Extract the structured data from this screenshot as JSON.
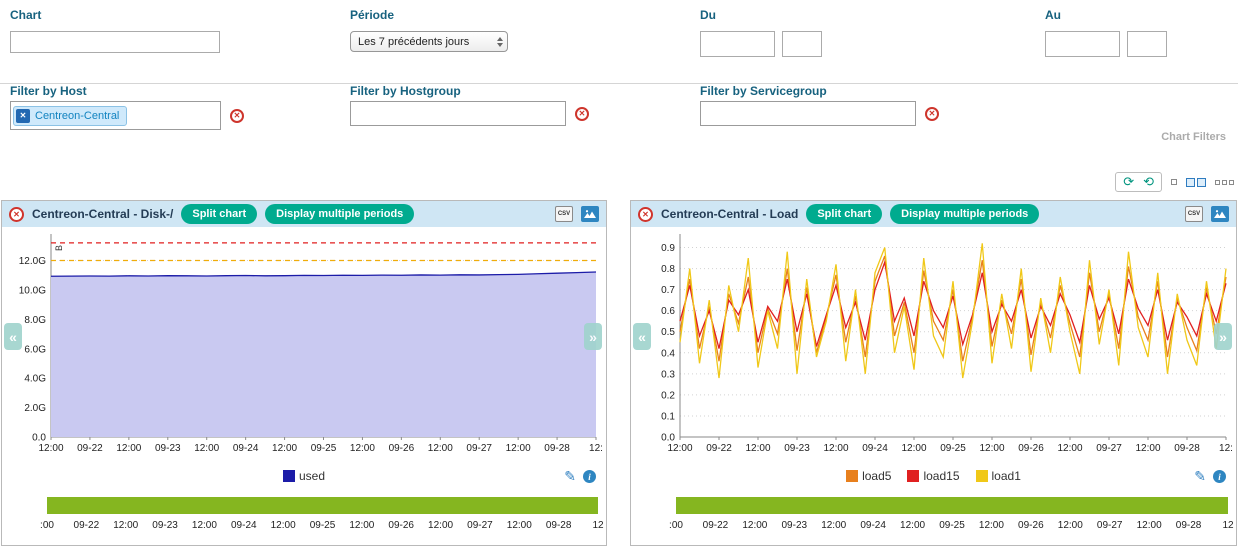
{
  "filter_form": {
    "chart": {
      "label": "Chart",
      "value": ""
    },
    "periode": {
      "label": "Période",
      "value": "Les 7 précédents jours"
    },
    "du": {
      "label": "Du",
      "date_value": "",
      "time_value": ""
    },
    "au": {
      "label": "Au",
      "date_value": "",
      "time_value": ""
    },
    "host": {
      "label": "Filter by Host",
      "chip": "Centreon-Central",
      "value": ""
    },
    "hostgroup": {
      "label": "Filter by Hostgroup",
      "value": ""
    },
    "servicegroup": {
      "label": "Filter by Servicegroup",
      "value": ""
    },
    "section_label": "Chart Filters"
  },
  "icons": {
    "close": "✕",
    "chip_remove": "✕",
    "prev": "«",
    "next": "»",
    "edit": "✎",
    "info": "i",
    "refresh_cw": "⟳",
    "refresh_ccw": "⟲",
    "csv": "CSV"
  },
  "panels": [
    {
      "title": "Centreon-Central - Disk-/",
      "split_button": "Split chart",
      "periods_button": "Display multiple periods"
    },
    {
      "title": "Centreon-Central - Load",
      "split_button": "Split chart",
      "periods_button": "Display multiple periods"
    }
  ],
  "timeline": {
    "color": "#85b620",
    "x_ticks": [
      ":00",
      "09-22",
      "12:00",
      "09-23",
      "12:00",
      "09-24",
      "12:00",
      "09-25",
      "12:00",
      "09-26",
      "12:00",
      "09-27",
      "12:00",
      "09-28",
      "12"
    ]
  },
  "chart_data": [
    {
      "type": "area",
      "title": "Centreon-Central - Disk-/",
      "ylabel": "B",
      "ylim": [
        0,
        13.6
      ],
      "yticks": [
        0,
        2,
        4,
        6,
        8,
        10,
        12
      ],
      "ytick_labels": [
        "0.0",
        "2.0G",
        "4.0G",
        "6.0G",
        "8.0G",
        "10.0G",
        "12.0G"
      ],
      "x_ticks": [
        "12:00",
        "09-22",
        "12:00",
        "09-23",
        "12:00",
        "09-24",
        "12:00",
        "09-25",
        "12:00",
        "09-26",
        "12:00",
        "09-27",
        "12:00",
        "09-28",
        "12:"
      ],
      "grid": true,
      "legend_position": "bottom",
      "thresholds": [
        {
          "name": "critical",
          "value": 13.2,
          "color": "#e01f1f"
        },
        {
          "name": "warning",
          "value": 12.0,
          "color": "#f0ad0a"
        }
      ],
      "series": [
        {
          "name": "used",
          "color": "#1c1ca8",
          "fill": "#c9c9f1",
          "values": [
            10.93,
            10.94,
            10.95,
            10.94,
            10.96,
            10.95,
            10.97,
            10.96,
            10.95,
            10.97,
            10.98,
            10.96,
            10.97,
            10.99,
            10.98,
            11.0,
            10.99,
            11.01,
            11.0,
            11.02,
            11.01,
            11.03,
            11.02,
            11.04,
            11.06,
            11.1,
            11.14,
            11.18,
            11.22
          ]
        }
      ]
    },
    {
      "type": "line",
      "title": "Centreon-Central - Load",
      "ylabel": "",
      "ylim": [
        0,
        0.95
      ],
      "yticks": [
        0,
        0.1,
        0.2,
        0.3,
        0.4,
        0.5,
        0.6,
        0.7,
        0.8,
        0.9
      ],
      "ytick_labels": [
        "0.0",
        "0.1",
        "0.2",
        "0.3",
        "0.4",
        "0.5",
        "0.6",
        "0.7",
        "0.8",
        "0.9"
      ],
      "x_ticks": [
        "12:00",
        "09-22",
        "12:00",
        "09-23",
        "12:00",
        "09-24",
        "12:00",
        "09-25",
        "12:00",
        "09-26",
        "12:00",
        "09-27",
        "12:00",
        "09-28",
        "12:"
      ],
      "grid": true,
      "legend_position": "bottom",
      "thresholds": [],
      "series": [
        {
          "name": "load5",
          "color": "#e8801d",
          "values": [
            0.5,
            0.75,
            0.42,
            0.62,
            0.36,
            0.68,
            0.54,
            0.76,
            0.4,
            0.61,
            0.49,
            0.8,
            0.41,
            0.71,
            0.4,
            0.57,
            0.77,
            0.45,
            0.67,
            0.38,
            0.74,
            0.86,
            0.48,
            0.64,
            0.4,
            0.79,
            0.55,
            0.46,
            0.7,
            0.36,
            0.57,
            0.84,
            0.43,
            0.65,
            0.49,
            0.75,
            0.39,
            0.64,
            0.47,
            0.72,
            0.54,
            0.38,
            0.78,
            0.5,
            0.68,
            0.42,
            0.81,
            0.57,
            0.46,
            0.74,
            0.38,
            0.66,
            0.52,
            0.41,
            0.71,
            0.49,
            0.76
          ]
        },
        {
          "name": "load15",
          "color": "#e02020",
          "values": [
            0.55,
            0.72,
            0.48,
            0.6,
            0.42,
            0.65,
            0.58,
            0.7,
            0.45,
            0.62,
            0.55,
            0.75,
            0.5,
            0.68,
            0.43,
            0.58,
            0.72,
            0.52,
            0.64,
            0.46,
            0.7,
            0.83,
            0.55,
            0.66,
            0.48,
            0.74,
            0.6,
            0.52,
            0.67,
            0.44,
            0.58,
            0.78,
            0.5,
            0.63,
            0.55,
            0.7,
            0.47,
            0.62,
            0.53,
            0.68,
            0.58,
            0.45,
            0.72,
            0.56,
            0.66,
            0.49,
            0.75,
            0.61,
            0.53,
            0.7,
            0.46,
            0.64,
            0.57,
            0.48,
            0.68,
            0.55,
            0.73
          ]
        },
        {
          "name": "load1",
          "color": "#f0c818",
          "values": [
            0.45,
            0.8,
            0.35,
            0.65,
            0.28,
            0.72,
            0.5,
            0.85,
            0.33,
            0.6,
            0.42,
            0.88,
            0.3,
            0.75,
            0.38,
            0.55,
            0.82,
            0.36,
            0.7,
            0.3,
            0.78,
            0.9,
            0.4,
            0.62,
            0.32,
            0.85,
            0.48,
            0.38,
            0.74,
            0.28,
            0.55,
            0.92,
            0.35,
            0.68,
            0.42,
            0.8,
            0.31,
            0.66,
            0.4,
            0.76,
            0.5,
            0.3,
            0.84,
            0.44,
            0.7,
            0.34,
            0.88,
            0.52,
            0.38,
            0.78,
            0.3,
            0.68,
            0.46,
            0.34,
            0.74,
            0.42,
            0.8
          ]
        }
      ]
    }
  ]
}
